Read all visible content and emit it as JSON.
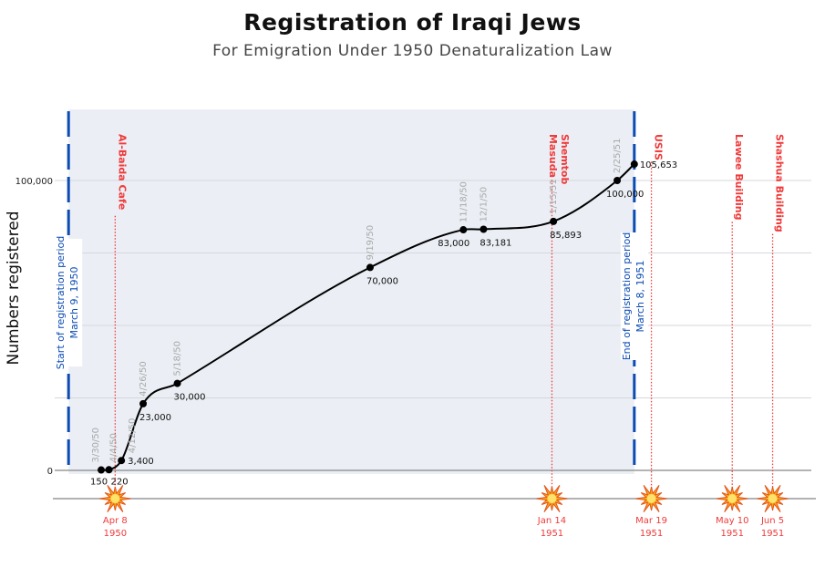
{
  "chart_data": {
    "type": "line",
    "title": "Registration of Iraqi Jews",
    "subtitle": "For Emigration Under 1950 Denaturalization Law",
    "ylabel": "Numbers registered",
    "xlabel": "",
    "ylim": [
      0,
      120000
    ],
    "y_ticks": [
      {
        "value": 0,
        "label": "0"
      },
      {
        "value": 100000,
        "label": "100,000"
      }
    ],
    "y_gridlines": [
      25000,
      50000,
      75000,
      100000
    ],
    "grid": true,
    "points": [
      {
        "date": "1950-03-30",
        "date_label": "3/30/50",
        "value": 150,
        "value_label": "150"
      },
      {
        "date": "1950-04-04",
        "date_label": "4/4/50",
        "value": 220,
        "value_label": "220"
      },
      {
        "date": "1950-04-12",
        "date_label": "4/12/50",
        "value": 3400,
        "value_label": "3,400"
      },
      {
        "date": "1950-04-26",
        "date_label": "4/26/50",
        "value": 23000,
        "value_label": "23,000"
      },
      {
        "date": "1950-05-18",
        "date_label": "5/18/50",
        "value": 30000,
        "value_label": "30,000"
      },
      {
        "date": "1950-09-19",
        "date_label": "9/19/50",
        "value": 70000,
        "value_label": "70,000"
      },
      {
        "date": "1950-11-18",
        "date_label": "11/18/50",
        "value": 83000,
        "value_label": "83,000"
      },
      {
        "date": "1950-12-01",
        "date_label": "12/1/50",
        "value": 83181,
        "value_label": "83,181"
      },
      {
        "date": "1951-01-15",
        "date_label": "1/15/51",
        "value": 85893,
        "value_label": "85,893"
      },
      {
        "date": "1951-02-25",
        "date_label": "2/25/51",
        "value": 100000,
        "value_label": "100,000"
      },
      {
        "date": "1951-03-08",
        "date_label": "",
        "value": 105653,
        "value_label": "105,653"
      }
    ],
    "registration_period": {
      "start": {
        "date": "1950-03-09",
        "label": "Start of registration period",
        "sublabel": "March 9, 1950"
      },
      "end": {
        "date": "1951-03-08",
        "label": "End of registration period",
        "sublabel": "March 8, 1951"
      },
      "shade_color": "#ebeff5",
      "line_color": "#0b4bb3"
    },
    "bombings": [
      {
        "date": "1950-04-08",
        "name": "Al-Baida Cafe",
        "label1": "Apr 8",
        "label2": "1950"
      },
      {
        "date": "1951-01-14",
        "name": "Masuda Shemtob",
        "label1": "Jan 14",
        "label2": "1951"
      },
      {
        "date": "1951-03-19",
        "name": "USIS",
        "label1": "Mar 19",
        "label2": "1951"
      },
      {
        "date": "1951-05-10",
        "name": "Lawee Building",
        "label1": "May 10",
        "label2": "1951"
      },
      {
        "date": "1951-06-05",
        "name": "Shashua Building",
        "label1": "Jun 5",
        "label2": "1951"
      }
    ],
    "event_color": "#f03a3a",
    "explosion-icon": "explosion-icon"
  }
}
